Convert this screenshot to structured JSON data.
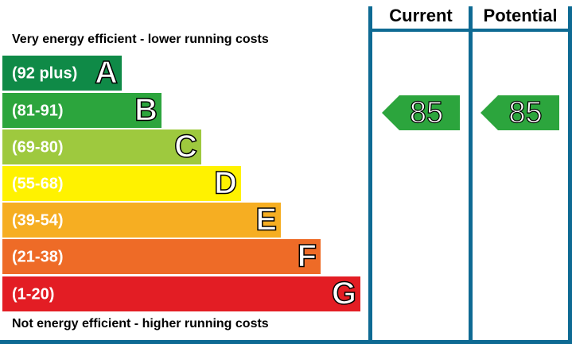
{
  "header": {
    "top_note": "Very energy efficient - lower running costs",
    "bottom_note": "Not energy efficient - higher running costs",
    "current_label": "Current",
    "potential_label": "Potential"
  },
  "bands": [
    {
      "range": "(92 plus)",
      "letter": "A",
      "color": "#0f8a47"
    },
    {
      "range": "(81-91)",
      "letter": "B",
      "color": "#2ca53d"
    },
    {
      "range": "(69-80)",
      "letter": "C",
      "color": "#9ec93e"
    },
    {
      "range": "(55-68)",
      "letter": "D",
      "color": "#fff200"
    },
    {
      "range": "(39-54)",
      "letter": "E",
      "color": "#f6ae22"
    },
    {
      "range": "(21-38)",
      "letter": "F",
      "color": "#ee6b27"
    },
    {
      "range": "(1-20)",
      "letter": "G",
      "color": "#e31d24"
    }
  ],
  "current": {
    "rating": "85",
    "color": "#2ca53d"
  },
  "potential": {
    "rating": "85",
    "color": "#2ca53d"
  }
}
